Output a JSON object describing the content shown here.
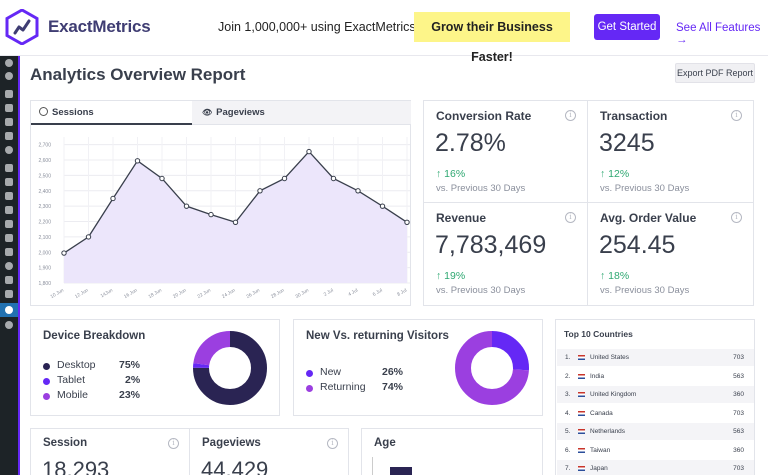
{
  "banner": {
    "brand": "ExactMetrics",
    "promo": "Join 1,000,000+ using ExactMetrics to",
    "promo_highlight": "Grow their Business Faster!",
    "cta": "Get Started",
    "see_all": "See All Features  →"
  },
  "page": {
    "title": "Analytics Overview Report",
    "export_button": "Export PDF Report"
  },
  "tabs": {
    "sessions": "Sessions",
    "pageviews": "Pageviews"
  },
  "chart_data": {
    "type": "line",
    "categories": [
      "10 Jun",
      "12 Jun",
      "14Jun",
      "16 Jun",
      "18 Jun",
      "20 Jun",
      "22 Jun",
      "24 Jun",
      "26 Jun",
      "28 Jun",
      "30 Jun",
      "2 Jul",
      "4 Jul",
      "6 Jul",
      "8 Jul"
    ],
    "values": [
      1995,
      2100,
      2350,
      2595,
      2480,
      2300,
      2245,
      2195,
      2400,
      2480,
      2655,
      2480,
      2400,
      2300,
      2195
    ],
    "y_ticks": [
      1800,
      1900,
      2000,
      2100,
      2200,
      2300,
      2400,
      2500,
      2600,
      2700
    ],
    "y_tick_labels": [
      "1,800",
      "1,900",
      "2,000",
      "2,100",
      "2,200",
      "2,300",
      "2,400",
      "2,500",
      "2,600",
      "2,700"
    ],
    "ylim": [
      1800,
      2750
    ],
    "line_color": "#393f4c",
    "fill_color": "#ece6fb",
    "grid": true
  },
  "stats": [
    {
      "title": "Conversion Rate",
      "value": "2.78%",
      "change": "↑ 16%",
      "prev": "vs. Previous 30 Days"
    },
    {
      "title": "Transaction",
      "value": "3245",
      "change": "↑ 12%",
      "prev": "vs. Previous 30 Days"
    },
    {
      "title": "Revenue",
      "value": "7,783,469",
      "change": "↑ 19%",
      "prev": "vs. Previous 30 Days"
    },
    {
      "title": "Avg. Order Value",
      "value": "254.45",
      "change": "↑ 18%",
      "prev": "vs. Previous 30 Days"
    }
  ],
  "device": {
    "title": "Device Breakdown",
    "items": [
      {
        "label": "Desktop",
        "value": "75%",
        "pct": 75,
        "color": "#2a2453"
      },
      {
        "label": "Tablet",
        "value": "2%",
        "pct": 2,
        "color": "#6528f5"
      },
      {
        "label": "Mobile",
        "value": "23%",
        "pct": 23,
        "color": "#9b3fe0"
      }
    ]
  },
  "visitors": {
    "title": "New Vs. returning Visitors",
    "items": [
      {
        "label": "New",
        "value": "26%",
        "pct": 26,
        "color": "#6528f5"
      },
      {
        "label": "Returning",
        "value": "74%",
        "pct": 74,
        "color": "#9b3fe0"
      }
    ]
  },
  "countries": {
    "title": "Top 10 Countries",
    "rows": [
      {
        "n": "1.",
        "name": "United States",
        "value": "703"
      },
      {
        "n": "2.",
        "name": "India",
        "value": "563"
      },
      {
        "n": "3.",
        "name": "United Kingdom",
        "value": "360"
      },
      {
        "n": "4.",
        "name": "Canada",
        "value": "703"
      },
      {
        "n": "5.",
        "name": "Netherlands",
        "value": "563"
      },
      {
        "n": "6.",
        "name": "Taiwan",
        "value": "360"
      },
      {
        "n": "7.",
        "name": "Japan",
        "value": "703"
      }
    ]
  },
  "bottom": {
    "session": {
      "title": "Session",
      "value": "18,293"
    },
    "pageviews": {
      "title": "Pageviews",
      "value": "44,429"
    },
    "age": {
      "title": "Age"
    }
  },
  "info_glyph": "i"
}
